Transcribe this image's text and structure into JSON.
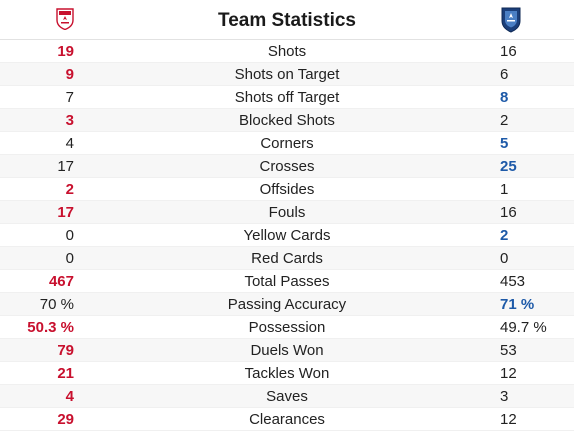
{
  "header": {
    "title": "Team Statistics",
    "home_logo_icon": "toronto-fc-crest-icon",
    "away_logo_icon": "montreal-impact-crest-icon"
  },
  "colors": {
    "home_accent": "#c8102e",
    "away_accent": "#1e5aa8"
  },
  "stats": [
    {
      "label": "Shots",
      "home": "19",
      "away": "16",
      "leader": "home"
    },
    {
      "label": "Shots on Target",
      "home": "9",
      "away": "6",
      "leader": "home"
    },
    {
      "label": "Shots off Target",
      "home": "7",
      "away": "8",
      "leader": "away"
    },
    {
      "label": "Blocked Shots",
      "home": "3",
      "away": "2",
      "leader": "home"
    },
    {
      "label": "Corners",
      "home": "4",
      "away": "5",
      "leader": "away"
    },
    {
      "label": "Crosses",
      "home": "17",
      "away": "25",
      "leader": "away"
    },
    {
      "label": "Offsides",
      "home": "2",
      "away": "1",
      "leader": "home"
    },
    {
      "label": "Fouls",
      "home": "17",
      "away": "16",
      "leader": "home"
    },
    {
      "label": "Yellow Cards",
      "home": "0",
      "away": "2",
      "leader": "away"
    },
    {
      "label": "Red Cards",
      "home": "0",
      "away": "0",
      "leader": "none"
    },
    {
      "label": "Total Passes",
      "home": "467",
      "away": "453",
      "leader": "home"
    },
    {
      "label": "Passing Accuracy",
      "home": "70 %",
      "away": "71 %",
      "leader": "away"
    },
    {
      "label": "Possession",
      "home": "50.3 %",
      "away": "49.7 %",
      "leader": "home"
    },
    {
      "label": "Duels Won",
      "home": "79",
      "away": "53",
      "leader": "home"
    },
    {
      "label": "Tackles Won",
      "home": "21",
      "away": "12",
      "leader": "home"
    },
    {
      "label": "Saves",
      "home": "4",
      "away": "3",
      "leader": "home"
    },
    {
      "label": "Clearances",
      "home": "29",
      "away": "12",
      "leader": "home"
    }
  ]
}
